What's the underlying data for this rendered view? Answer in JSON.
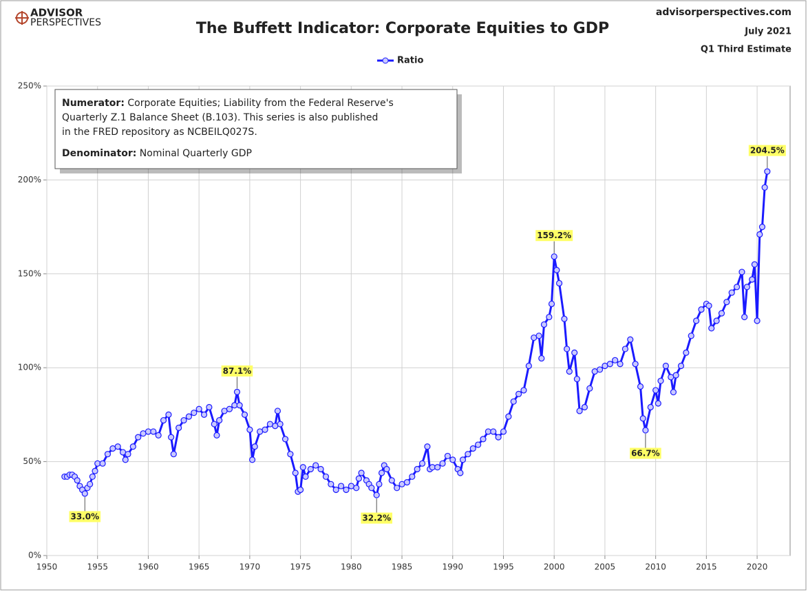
{
  "header": {
    "logo_top": "ADVISOR",
    "logo_bottom": "PERSPECTIVES",
    "site": "advisorperspectives.com",
    "date": "July 2021",
    "estimate": "Q1 Third Estimate"
  },
  "notes": [
    {
      "label": "Numerator:",
      "lines": [
        " Corporate Equities; Liability from the Federal Reserve's",
        "Quarterly Z.1 Balance Sheet (B.103). This series is also published",
        "in the FRED repository  as NCBEILQ027S."
      ]
    },
    {
      "label": "Denominator:",
      "lines": [
        " Nominal Quarterly GDP"
      ]
    }
  ],
  "chart_data": {
    "type": "line",
    "title": "The Buffett Indicator: Corporate Equities to GDP",
    "xlim": [
      1950,
      2023.25
    ],
    "xticks": [
      1950,
      1955,
      1960,
      1965,
      1970,
      1975,
      1980,
      1985,
      1990,
      1995,
      2000,
      2005,
      2010,
      2015,
      2020
    ],
    "ylim": [
      0,
      250
    ],
    "yticks": [
      {
        "value": 0,
        "label": "0%"
      },
      {
        "value": 50,
        "label": "50%"
      },
      {
        "value": 100,
        "label": "100%"
      },
      {
        "value": 150,
        "label": "150%"
      },
      {
        "value": 200,
        "label": "200%"
      },
      {
        "value": 250,
        "label": "250%"
      }
    ],
    "grid": true,
    "legend": "top",
    "x": [
      1951.75,
      1952,
      1952.25,
      1952.5,
      1952.75,
      1953,
      1953.25,
      1953.5,
      1953.75,
      1954,
      1954.25,
      1954.5,
      1954.75,
      1955,
      1955.5,
      1956,
      1956.5,
      1957,
      1957.5,
      1957.75,
      1958,
      1958.5,
      1959,
      1959.5,
      1960,
      1960.5,
      1961,
      1961.5,
      1962,
      1962.25,
      1962.5,
      1963,
      1963.5,
      1964,
      1964.5,
      1965,
      1965.5,
      1966,
      1966.5,
      1966.75,
      1967,
      1967.5,
      1968,
      1968.5,
      1968.75,
      1969,
      1969.5,
      1970,
      1970.25,
      1970.5,
      1971,
      1971.5,
      1972,
      1972.5,
      1972.75,
      1973,
      1973.5,
      1974,
      1974.5,
      1974.75,
      1975,
      1975.25,
      1975.5,
      1976,
      1976.5,
      1977,
      1977.5,
      1978,
      1978.5,
      1979,
      1979.5,
      1980,
      1980.5,
      1980.75,
      1981,
      1981.5,
      1981.75,
      1982,
      1982.5,
      1982.75,
      1983,
      1983.25,
      1983.5,
      1984,
      1984.5,
      1985,
      1985.5,
      1986,
      1986.5,
      1987,
      1987.5,
      1987.75,
      1988,
      1988.5,
      1989,
      1989.5,
      1990,
      1990.5,
      1990.75,
      1991,
      1991.5,
      1992,
      1992.5,
      1993,
      1993.5,
      1994,
      1994.5,
      1995,
      1995.5,
      1996,
      1996.5,
      1997,
      1997.5,
      1998,
      1998.5,
      1998.75,
      1999,
      1999.5,
      1999.75,
      2000,
      2000.25,
      2000.5,
      2001,
      2001.25,
      2001.5,
      2002,
      2002.25,
      2002.5,
      2003,
      2003.5,
      2004,
      2004.5,
      2005,
      2005.5,
      2006,
      2006.5,
      2007,
      2007.5,
      2008,
      2008.5,
      2008.75,
      2009,
      2009.5,
      2010,
      2010.25,
      2010.5,
      2011,
      2011.5,
      2011.75,
      2012,
      2012.5,
      2013,
      2013.5,
      2014,
      2014.5,
      2015,
      2015.25,
      2015.5,
      2016,
      2016.5,
      2017,
      2017.5,
      2018,
      2018.5,
      2018.75,
      2019,
      2019.5,
      2019.75,
      2020,
      2020.25,
      2020.5,
      2020.75,
      2021
    ],
    "series": [
      {
        "name": "Ratio",
        "color": "#1a1aff",
        "values": [
          42,
          42,
          43,
          43,
          42,
          40,
          37,
          35,
          33.0,
          36,
          38,
          42,
          45,
          49,
          49,
          54,
          57,
          58,
          55,
          51,
          54,
          58,
          63,
          65,
          66,
          66,
          64,
          72,
          75,
          63,
          54,
          68,
          72,
          74,
          76,
          78,
          75,
          79,
          70,
          64,
          72,
          77,
          78,
          80,
          87.1,
          80,
          75,
          67,
          51,
          58,
          66,
          67,
          70,
          69,
          77,
          70,
          62,
          54,
          44,
          34,
          35,
          47,
          42,
          46,
          48,
          46,
          42,
          38,
          35,
          37,
          35,
          37,
          36,
          41,
          44,
          40,
          38,
          36,
          32.2,
          38,
          44,
          48,
          46,
          40,
          36,
          38,
          39,
          42,
          46,
          49,
          58,
          46,
          47,
          47,
          49,
          53,
          51,
          46,
          44,
          51,
          54,
          57,
          59,
          62,
          66,
          66,
          63,
          66,
          74,
          82,
          86,
          88,
          101,
          116,
          117,
          105,
          123,
          127,
          134,
          159.2,
          152,
          145,
          126,
          110,
          98,
          108,
          94,
          77,
          79,
          89,
          98,
          99,
          101,
          102,
          104,
          102,
          110,
          115,
          102,
          90,
          73,
          66.7,
          79,
          88,
          81,
          93,
          101,
          95,
          87,
          96,
          101,
          108,
          117,
          125,
          131,
          134,
          133,
          121,
          125,
          129,
          135,
          140,
          143,
          151,
          127,
          143,
          147,
          155,
          125,
          171,
          175,
          196,
          204.5
        ]
      }
    ],
    "annotations": [
      {
        "text": "33.0%",
        "x": 1953.75,
        "y": 33.0
      },
      {
        "text": "87.1%",
        "x": 1968.75,
        "y": 87.1
      },
      {
        "text": "32.2%",
        "x": 1982.5,
        "y": 32.2
      },
      {
        "text": "159.2%",
        "x": 2000,
        "y": 159.2
      },
      {
        "text": "66.7%",
        "x": 2009,
        "y": 66.7
      },
      {
        "text": "204.5%",
        "x": 2021,
        "y": 204.5
      }
    ]
  }
}
